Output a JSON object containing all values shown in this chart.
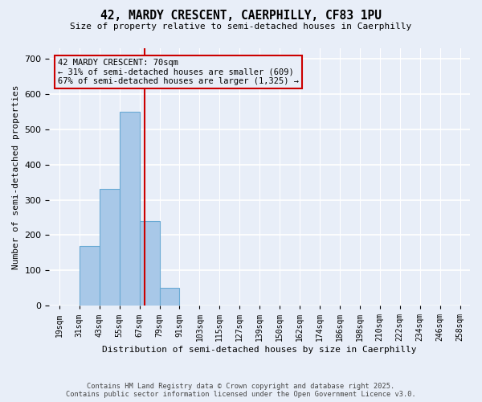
{
  "title_line1": "42, MARDY CRESCENT, CAERPHILLY, CF83 1PU",
  "title_line2": "Size of property relative to semi-detached houses in Caerphilly",
  "xlabel": "Distribution of semi-detached houses by size in Caerphilly",
  "ylabel": "Number of semi-detached properties",
  "bar_color": "#a8c8e8",
  "bar_edge_color": "#6aaad4",
  "annotation_line1": "42 MARDY CRESCENT: 70sqm",
  "annotation_line2": "← 31% of semi-detached houses are smaller (609)",
  "annotation_line3": "67% of semi-detached houses are larger (1,325) →",
  "tick_labels": [
    "19sqm",
    "31sqm",
    "43sqm",
    "55sqm",
    "67sqm",
    "79sqm",
    "91sqm",
    "103sqm",
    "115sqm",
    "127sqm",
    "139sqm",
    "150sqm",
    "162sqm",
    "174sqm",
    "186sqm",
    "198sqm",
    "210sqm",
    "222sqm",
    "234sqm",
    "246sqm",
    "258sqm"
  ],
  "counts": [
    0,
    170,
    330,
    550,
    240,
    50,
    0,
    0,
    0,
    0,
    0,
    0,
    0,
    0,
    0,
    0,
    0,
    0,
    0,
    0
  ],
  "ylim": [
    0,
    730
  ],
  "yticks": [
    0,
    100,
    200,
    300,
    400,
    500,
    600,
    700
  ],
  "footer_line1": "Contains HM Land Registry data © Crown copyright and database right 2025.",
  "footer_line2": "Contains public sector information licensed under the Open Government Licence v3.0.",
  "bg_color": "#e8eef8",
  "grid_color": "#ffffff",
  "vline_color": "#cc0000",
  "annot_box_color": "#cc0000",
  "vline_x": 4.25
}
